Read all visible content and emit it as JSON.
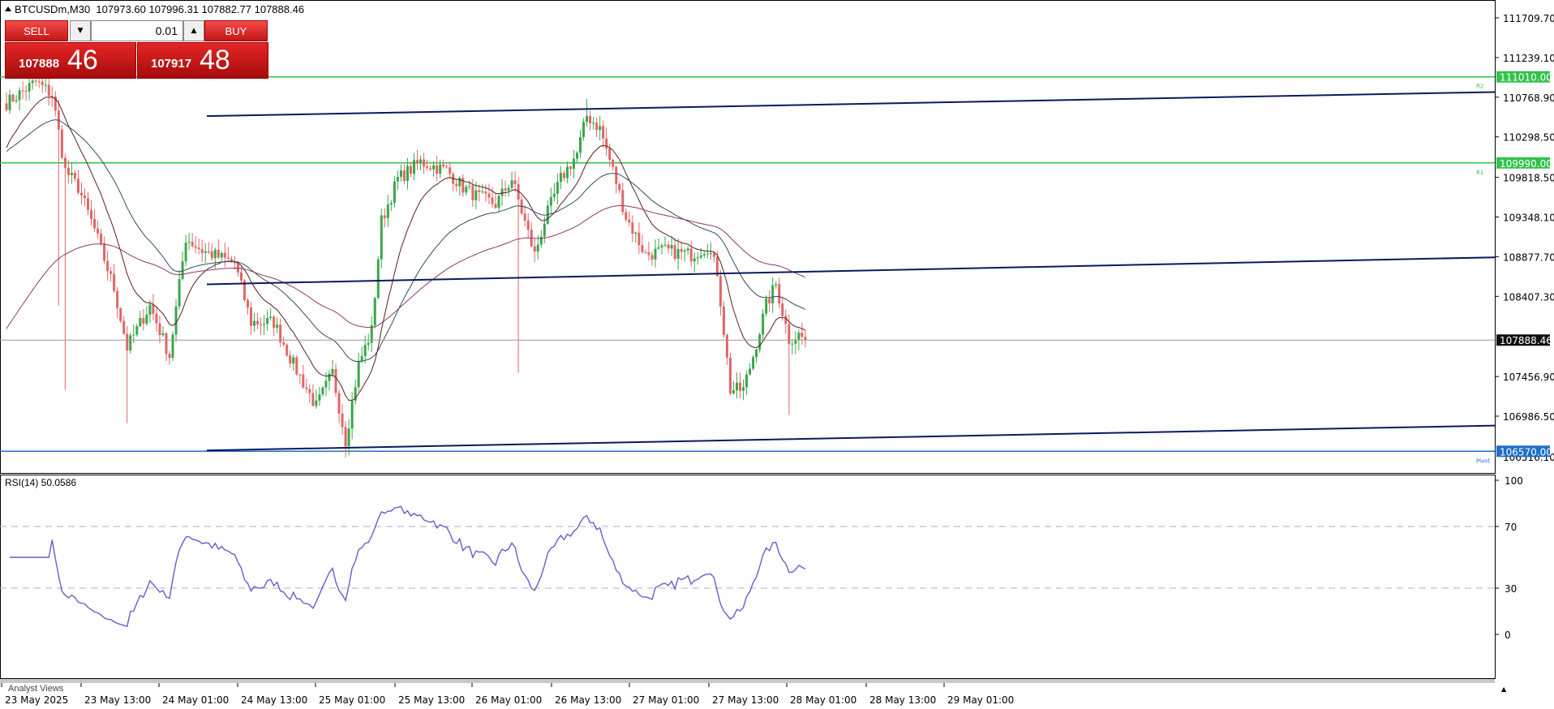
{
  "header": {
    "symbol_tf": "BTCUSDm,M30",
    "ohlc": "107973.60 107996.31 107882.77 107888.46"
  },
  "trade_panel": {
    "sell_label": "SELL",
    "buy_label": "BUY",
    "lot_value": "0.01",
    "bid_main": "107888",
    "bid_pips": "46",
    "ask_main": "107917",
    "ask_pips": "48"
  },
  "price_axis": {
    "ticks": [
      "111709.70",
      "111239.10",
      "110768.90",
      "110298.50",
      "109818.50",
      "109348.10",
      "108877.70",
      "108407.30",
      "107456.90",
      "106986.50"
    ],
    "tick_values": [
      111709.7,
      111239.1,
      110768.9,
      110298.5,
      109818.5,
      109348.1,
      108877.7,
      108407.3,
      107456.9,
      106986.5
    ],
    "partial_tick": "106516.10",
    "current_price_label": "107888.46",
    "current_price": 107888.46
  },
  "levels": [
    {
      "label": "111010.00",
      "value": 111010.0,
      "tag": "R2",
      "color": "#33c24d"
    },
    {
      "label": "109990.00",
      "value": 109990.0,
      "tag": "R1",
      "color": "#33c24d"
    },
    {
      "label": "106570.00",
      "value": 106570.0,
      "tag": "Pivot",
      "color": "#1e6fc7"
    }
  ],
  "rsi": {
    "label": "RSI(14) 50.0586",
    "ticks": [
      "100",
      "70",
      "30",
      "0"
    ],
    "tick_values": [
      100,
      70,
      30,
      0
    ],
    "line_color": "#6a5acd"
  },
  "time_axis": {
    "labels": [
      "23 May 2025",
      "23 May 13:00",
      "24 May 01:00",
      "24 May 13:00",
      "25 May 01:00",
      "25 May 13:00",
      "26 May 01:00",
      "26 May 13:00",
      "27 May 01:00",
      "27 May 13:00",
      "28 May 01:00",
      "28 May 13:00",
      "29 May 01:00"
    ]
  },
  "analyst_views_label": "Analyst Views",
  "colors": {
    "bull": "#3aa64a",
    "bear": "#e06666",
    "channel": "#0a1a5c",
    "ma_fast": "#5a1e1e",
    "ma_mid": "#2e4d5c",
    "ma_slow": "#8b3a62"
  }
}
